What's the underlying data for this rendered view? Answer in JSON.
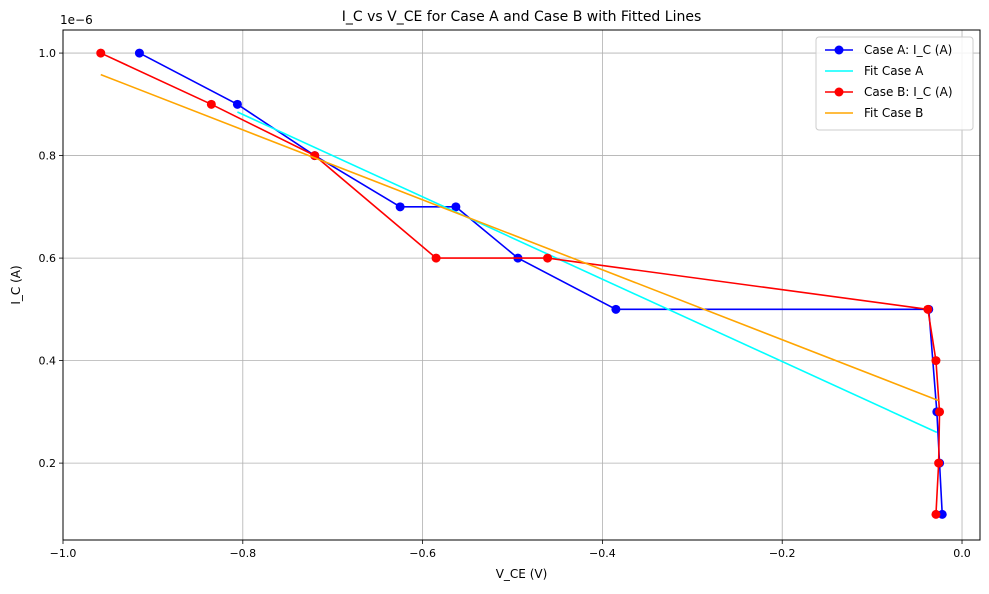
{
  "chart_data": {
    "type": "line",
    "title": "I_C vs V_CE for Case A and Case B with Fitted Lines",
    "xlabel": "V_CE (V)",
    "ylabel": "I_C (A)",
    "y_offset_label": "1e−6",
    "xlim": [
      -1.0,
      0.02
    ],
    "ylim": [
      0.05,
      1.045
    ],
    "x_ticks": [
      -1.0,
      -0.8,
      -0.6,
      -0.4,
      -0.2,
      0.0
    ],
    "x_tick_labels": [
      "−1.0",
      "−0.8",
      "−0.6",
      "−0.4",
      "−0.2",
      "0.0"
    ],
    "y_ticks": [
      0.2,
      0.4,
      0.6,
      0.8,
      1.0
    ],
    "y_tick_labels": [
      "0.2",
      "0.4",
      "0.6",
      "0.8",
      "1.0"
    ],
    "grid": true,
    "legend_position": "top-right",
    "series": [
      {
        "name": "Case A: I_C (A)",
        "kind": "line-marker",
        "color": "#0000ff",
        "x": [
          -0.915,
          -0.806,
          -0.72,
          -0.625,
          -0.563,
          -0.494,
          -0.385,
          -0.037,
          -0.028,
          -0.025,
          -0.022
        ],
        "y": [
          1.0,
          0.9,
          0.8,
          0.7,
          0.7,
          0.6,
          0.5,
          0.5,
          0.3,
          0.2,
          0.1
        ]
      },
      {
        "name": "Fit Case A",
        "kind": "line",
        "color": "#00ffff",
        "x": [
          -0.806,
          -0.028
        ],
        "y": [
          0.885,
          0.26
        ]
      },
      {
        "name": "Case B: I_C (A)",
        "kind": "line-marker",
        "color": "#ff0000",
        "x": [
          -0.958,
          -0.835,
          -0.72,
          -0.585,
          -0.461,
          -0.038,
          -0.029,
          -0.025,
          -0.026,
          -0.029
        ],
        "y": [
          1.0,
          0.9,
          0.8,
          0.6,
          0.6,
          0.5,
          0.4,
          0.3,
          0.2,
          0.1
        ]
      },
      {
        "name": "Fit Case B",
        "kind": "line",
        "color": "#ffa500",
        "x": [
          -0.958,
          -0.026
        ],
        "y": [
          0.958,
          0.322
        ]
      }
    ]
  }
}
